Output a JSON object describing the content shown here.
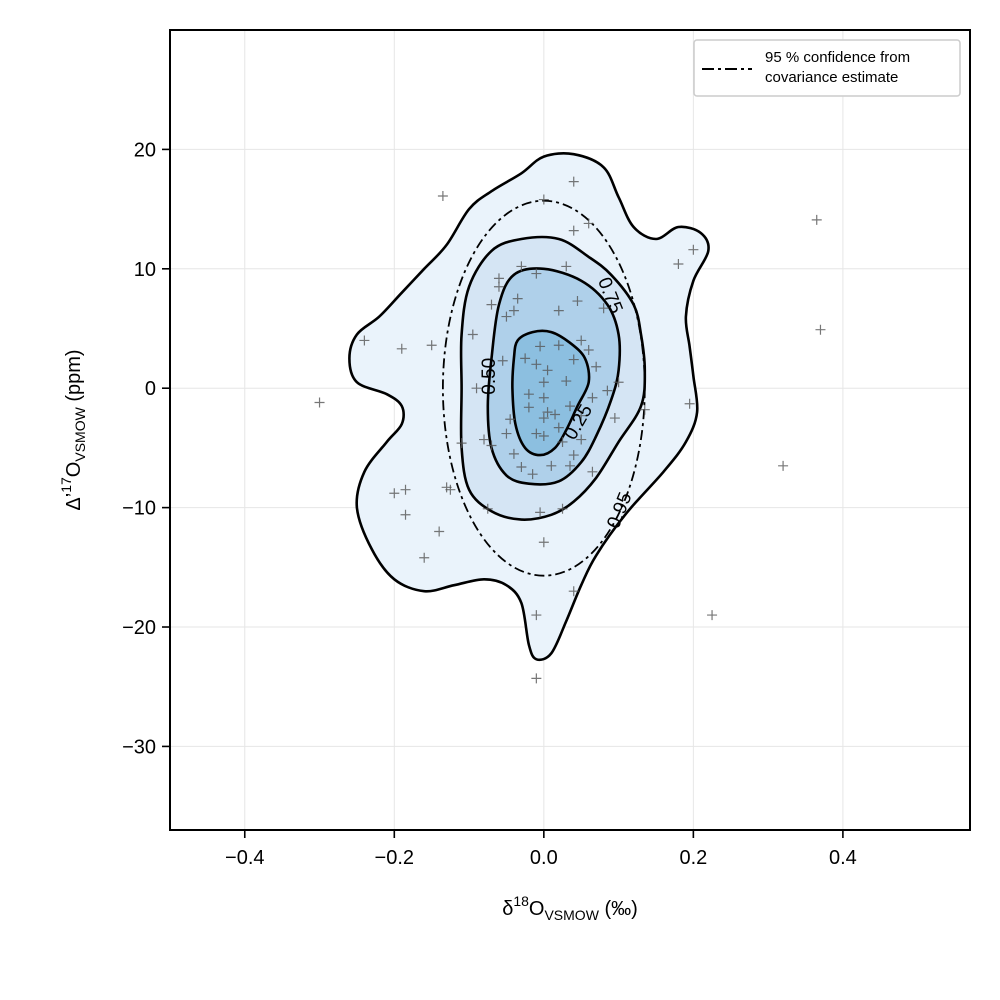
{
  "chart_data": {
    "type": "scatter",
    "title": "",
    "xlabel": {
      "base": "δ",
      "sup": "18",
      "main": "O",
      "sub": "VSMOW",
      "unit": " (‰)"
    },
    "ylabel": {
      "base": "Δ’",
      "sup": "17",
      "main": "O",
      "sub": "VSMOW",
      "unit": " (ppm)"
    },
    "xlim": [
      -0.5,
      0.57
    ],
    "ylim": [
      -37,
      30
    ],
    "xticks": [
      -0.4,
      -0.2,
      0.0,
      0.2,
      0.4
    ],
    "xtick_labels": [
      "−0.4",
      "−0.2",
      "0.0",
      "0.2",
      "0.4"
    ],
    "yticks": [
      20,
      10,
      0,
      -10,
      -20,
      -30
    ],
    "ytick_labels": [
      "20",
      "10",
      "0",
      "−10",
      "−20",
      "−30"
    ],
    "grid": true,
    "legend": {
      "placement": "top-right",
      "entries": [
        {
          "line_style": "dash-dot",
          "lines": [
            "95 % confidence from",
            "covariance estimate"
          ]
        }
      ]
    },
    "confidence_ellipse": {
      "center": [
        0.0,
        0.0
      ],
      "semi_axis_x": 0.135,
      "semi_axis_y": 15.7,
      "label": "0.95",
      "label_pos": [
        0.1,
        -10.2
      ],
      "label_angle": -68
    },
    "kde_contours": [
      {
        "level": 0.95,
        "fill": "#eaf3fb",
        "points": [
          [
            -0.26,
            2.5
          ],
          [
            -0.25,
            0.5
          ],
          [
            -0.21,
            -0.5
          ],
          [
            -0.19,
            -1.5
          ],
          [
            -0.19,
            -3.0
          ],
          [
            -0.21,
            -4.5
          ],
          [
            -0.24,
            -7.0
          ],
          [
            -0.25,
            -10.0
          ],
          [
            -0.23,
            -13.5
          ],
          [
            -0.2,
            -16.0
          ],
          [
            -0.16,
            -17.0
          ],
          [
            -0.12,
            -16.5
          ],
          [
            -0.08,
            -16.0
          ],
          [
            -0.05,
            -16.5
          ],
          [
            -0.03,
            -18.0
          ],
          [
            -0.02,
            -21.5
          ],
          [
            -0.01,
            -22.7
          ],
          [
            0.01,
            -22.2
          ],
          [
            0.03,
            -19.5
          ],
          [
            0.05,
            -16.5
          ],
          [
            0.07,
            -14.0
          ],
          [
            0.11,
            -10.5
          ],
          [
            0.16,
            -7.0
          ],
          [
            0.19,
            -4.5
          ],
          [
            0.205,
            -2.0
          ],
          [
            0.2,
            1.0
          ],
          [
            0.195,
            3.5
          ],
          [
            0.19,
            6.0
          ],
          [
            0.2,
            9.0
          ],
          [
            0.22,
            11.5
          ],
          [
            0.21,
            13.0
          ],
          [
            0.18,
            13.5
          ],
          [
            0.15,
            12.5
          ],
          [
            0.12,
            13.5
          ],
          [
            0.1,
            16.0
          ],
          [
            0.08,
            18.5
          ],
          [
            0.04,
            19.6
          ],
          [
            0.0,
            19.4
          ],
          [
            -0.03,
            18.0
          ],
          [
            -0.07,
            16.5
          ],
          [
            -0.1,
            15.0
          ],
          [
            -0.13,
            12.0
          ],
          [
            -0.16,
            10.0
          ],
          [
            -0.19,
            8.0
          ],
          [
            -0.22,
            6.0
          ],
          [
            -0.25,
            4.5
          ]
        ]
      },
      {
        "level": 0.75,
        "fill": "#d5e5f4",
        "label": "0.75",
        "label_pos": [
          0.09,
          7.8
        ],
        "label_angle": 68,
        "points": [
          [
            -0.11,
            4.5
          ],
          [
            -0.11,
            0.0
          ],
          [
            -0.11,
            -5.0
          ],
          [
            -0.1,
            -8.5
          ],
          [
            -0.07,
            -10.3
          ],
          [
            -0.03,
            -11.0
          ],
          [
            0.01,
            -10.6
          ],
          [
            0.04,
            -9.5
          ],
          [
            0.07,
            -7.5
          ],
          [
            0.1,
            -4.5
          ],
          [
            0.13,
            -1.5
          ],
          [
            0.135,
            1.5
          ],
          [
            0.13,
            4.5
          ],
          [
            0.12,
            7.0
          ],
          [
            0.09,
            9.5
          ],
          [
            0.06,
            11.0
          ],
          [
            0.02,
            12.5
          ],
          [
            -0.03,
            12.5
          ],
          [
            -0.07,
            11.5
          ],
          [
            -0.1,
            8.5
          ]
        ]
      },
      {
        "level": 0.5,
        "fill": "#afd0ea",
        "label": "0.50",
        "label_pos": [
          -0.075,
          1.0
        ],
        "label_angle": -90,
        "points": [
          [
            -0.07,
            2.5
          ],
          [
            -0.075,
            -1.5
          ],
          [
            -0.07,
            -5.0
          ],
          [
            -0.05,
            -7.3
          ],
          [
            -0.02,
            -8.0
          ],
          [
            0.02,
            -7.8
          ],
          [
            0.05,
            -6.2
          ],
          [
            0.07,
            -4.0
          ],
          [
            0.09,
            -1.0
          ],
          [
            0.1,
            1.5
          ],
          [
            0.1,
            4.5
          ],
          [
            0.085,
            7.0
          ],
          [
            0.05,
            9.0
          ],
          [
            0.0,
            10.0
          ],
          [
            -0.04,
            9.5
          ],
          [
            -0.06,
            7.0
          ]
        ]
      },
      {
        "level": 0.25,
        "fill": "#8cbfe0",
        "label": "0.25",
        "label_pos": [
          0.045,
          -2.8
        ],
        "label_angle": -60,
        "points": [
          [
            -0.04,
            2.5
          ],
          [
            -0.042,
            0.0
          ],
          [
            -0.038,
            -3.0
          ],
          [
            -0.025,
            -5.0
          ],
          [
            -0.005,
            -5.6
          ],
          [
            0.015,
            -5.0
          ],
          [
            0.03,
            -3.5
          ],
          [
            0.045,
            -1.5
          ],
          [
            0.06,
            0.5
          ],
          [
            0.055,
            2.5
          ],
          [
            0.035,
            3.8
          ],
          [
            0.01,
            4.7
          ],
          [
            -0.015,
            4.7
          ],
          [
            -0.035,
            4.0
          ]
        ]
      }
    ],
    "points": [
      [
        -0.3,
        -1.2
      ],
      [
        -0.24,
        4.0
      ],
      [
        -0.2,
        -8.8
      ],
      [
        -0.19,
        3.3
      ],
      [
        -0.185,
        -8.5
      ],
      [
        -0.185,
        -10.6
      ],
      [
        -0.16,
        -14.2
      ],
      [
        -0.15,
        3.6
      ],
      [
        -0.14,
        -12.0
      ],
      [
        -0.135,
        16.1
      ],
      [
        -0.13,
        -8.3
      ],
      [
        -0.125,
        -8.5
      ],
      [
        -0.11,
        -4.6
      ],
      [
        -0.095,
        4.5
      ],
      [
        -0.09,
        0.0
      ],
      [
        -0.08,
        -4.3
      ],
      [
        -0.075,
        -10.1
      ],
      [
        -0.07,
        -4.8
      ],
      [
        -0.07,
        7.0
      ],
      [
        -0.06,
        9.2
      ],
      [
        -0.06,
        8.5
      ],
      [
        -0.055,
        2.3
      ],
      [
        -0.05,
        6.0
      ],
      [
        -0.05,
        -3.8
      ],
      [
        -0.045,
        -2.6
      ],
      [
        -0.04,
        6.5
      ],
      [
        -0.04,
        -5.5
      ],
      [
        -0.035,
        7.5
      ],
      [
        -0.03,
        10.2
      ],
      [
        -0.03,
        -6.6
      ],
      [
        -0.025,
        2.5
      ],
      [
        -0.02,
        -0.5
      ],
      [
        -0.02,
        -1.6
      ],
      [
        -0.015,
        -7.2
      ],
      [
        -0.01,
        2.0
      ],
      [
        -0.01,
        -3.8
      ],
      [
        -0.01,
        9.6
      ],
      [
        -0.005,
        3.5
      ],
      [
        -0.005,
        -10.4
      ],
      [
        0.0,
        0.5
      ],
      [
        0.0,
        -0.8
      ],
      [
        0.0,
        -2.5
      ],
      [
        0.0,
        -4.0
      ],
      [
        -0.01,
        -24.3
      ],
      [
        -0.01,
        -19.0
      ],
      [
        0.0,
        -12.9
      ],
      [
        0.0,
        15.8
      ],
      [
        0.005,
        1.5
      ],
      [
        0.005,
        -2.0
      ],
      [
        0.01,
        -6.5
      ],
      [
        0.015,
        -2.2
      ],
      [
        0.02,
        3.6
      ],
      [
        0.02,
        -3.3
      ],
      [
        0.02,
        6.5
      ],
      [
        0.025,
        -4.5
      ],
      [
        0.025,
        -10.1
      ],
      [
        0.03,
        0.6
      ],
      [
        0.03,
        10.2
      ],
      [
        0.035,
        -1.5
      ],
      [
        0.035,
        -6.5
      ],
      [
        0.04,
        -5.6
      ],
      [
        0.04,
        2.4
      ],
      [
        0.04,
        13.2
      ],
      [
        0.04,
        17.3
      ],
      [
        0.04,
        -17.0
      ],
      [
        0.045,
        7.3
      ],
      [
        0.05,
        4.0
      ],
      [
        0.05,
        -2.3
      ],
      [
        0.05,
        -4.3
      ],
      [
        0.06,
        13.8
      ],
      [
        0.06,
        3.2
      ],
      [
        0.065,
        -0.8
      ],
      [
        0.065,
        -7.0
      ],
      [
        0.07,
        1.8
      ],
      [
        0.08,
        6.7
      ],
      [
        0.085,
        -0.2
      ],
      [
        0.095,
        -2.5
      ],
      [
        0.1,
        0.5
      ],
      [
        0.135,
        -1.8
      ],
      [
        0.18,
        10.4
      ],
      [
        0.195,
        -1.3
      ],
      [
        0.2,
        11.6
      ],
      [
        0.225,
        -19.0
      ],
      [
        0.32,
        -6.5
      ],
      [
        0.365,
        14.1
      ],
      [
        0.37,
        4.9
      ]
    ]
  }
}
